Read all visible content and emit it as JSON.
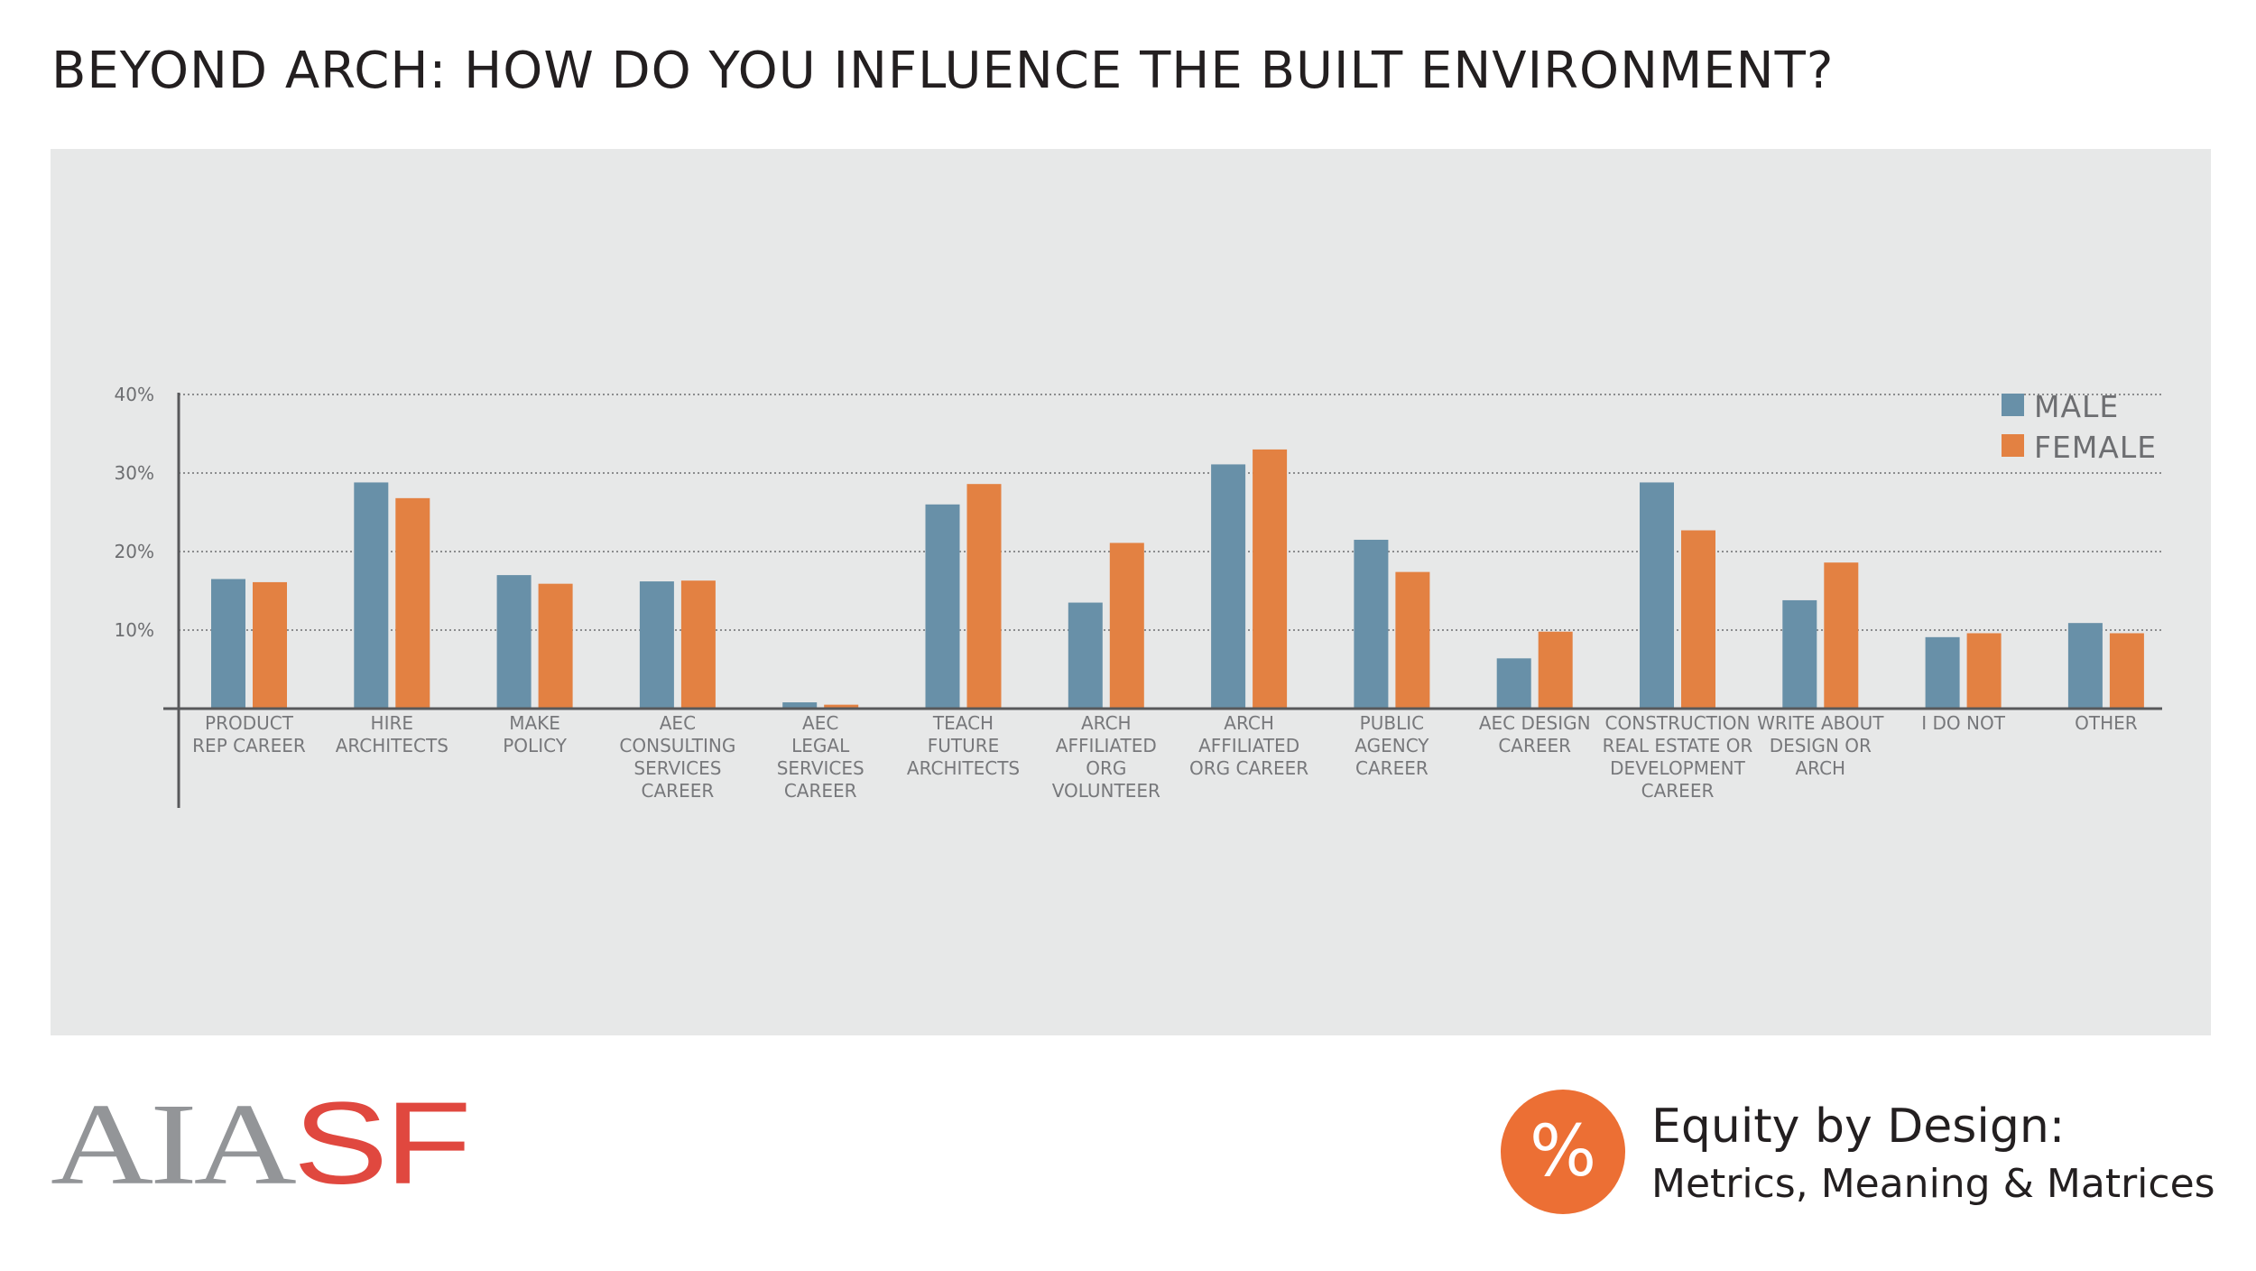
{
  "page": {
    "title": "BEYOND ARCH: HOW DO YOU INFLUENCE THE BUILT ENVIRONMENT?"
  },
  "chart_data": {
    "type": "bar",
    "title": "BEYOND ARCH: HOW DO YOU INFLUENCE THE BUILT ENVIRONMENT?",
    "categories": [
      [
        "PRODUCT",
        "REP CAREER"
      ],
      [
        "HIRE",
        "ARCHITECTS"
      ],
      [
        "MAKE",
        "POLICY"
      ],
      [
        "AEC",
        "CONSULTING",
        "SERVICES",
        "CAREER"
      ],
      [
        "AEC",
        "LEGAL",
        "SERVICES",
        "CAREER"
      ],
      [
        "TEACH",
        "FUTURE",
        "ARCHITECTS"
      ],
      [
        "ARCH",
        "AFFILIATED",
        "ORG",
        "VOLUNTEER"
      ],
      [
        "ARCH",
        "AFFILIATED",
        "ORG CAREER"
      ],
      [
        "PUBLIC",
        "AGENCY",
        "CAREER"
      ],
      [
        "AEC DESIGN",
        "CAREER"
      ],
      [
        "CONSTRUCTION",
        "REAL ESTATE OR",
        "DEVELOPMENT",
        "CAREER"
      ],
      [
        "WRITE ABOUT",
        "DESIGN OR",
        "ARCH"
      ],
      [
        "I DO NOT"
      ],
      [
        "OTHER"
      ]
    ],
    "series": [
      {
        "name": "MALE",
        "color": "#6890a8",
        "values": [
          16.5,
          28.8,
          17.0,
          16.2,
          0.8,
          26.0,
          13.5,
          31.1,
          21.5,
          6.4,
          28.8,
          13.8,
          9.1,
          10.9
        ]
      },
      {
        "name": "FEMALE",
        "color": "#e38142",
        "values": [
          16.1,
          26.8,
          15.9,
          16.3,
          0.5,
          28.6,
          21.1,
          33.0,
          17.4,
          9.8,
          22.7,
          18.6,
          9.6,
          9.6
        ]
      }
    ],
    "yticks": [
      "40%",
      "30%",
      "20%",
      "10%"
    ],
    "ytick_values": [
      40,
      30,
      20,
      10
    ],
    "ylim": [
      0,
      40
    ],
    "grid": "horizontal dotted",
    "legend": "top-right",
    "xlabel": "",
    "ylabel": ""
  },
  "footer": {
    "logo_part1": "AIA",
    "logo_part2": "SF",
    "badge_symbol": "%",
    "eq_title": "Equity by Design:",
    "eq_subtitle": "Metrics, Meaning & Matrices"
  },
  "colors": {
    "panel": "#e7e8e8",
    "male": "#6890a8",
    "female": "#e38142",
    "badge": "#ec6f34",
    "logo_gray": "#939598",
    "logo_red": "#e0483f"
  }
}
